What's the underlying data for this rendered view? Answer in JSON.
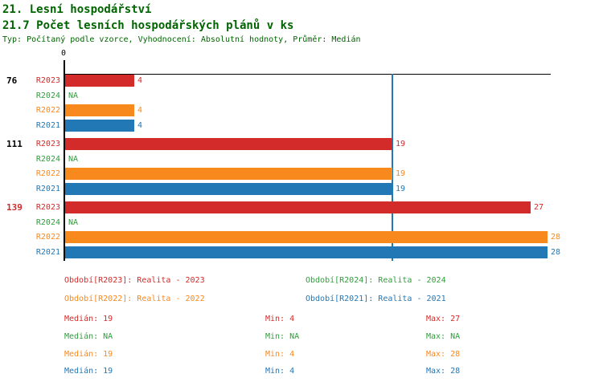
{
  "header": {
    "title": "21. Lesní hospodářství",
    "subtitle": "21.7 Počet lesních hospodářských plánů v ks",
    "meta": "Typ: Počítaný podle vzorce, Vyhodnocení: Absolutní hodnoty, Průměr: Medián"
  },
  "colors": {
    "heading": "#006400",
    "axis": "#000000",
    "red": "#d32b29",
    "green": "#2f9e3c",
    "orange": "#f8891d",
    "blue": "#2278b5"
  },
  "chart_data": {
    "type": "bar",
    "orientation": "horizontal",
    "title": "21.7 Počet lesních hospodářských plánů v ks",
    "x_axis": {
      "min": 0,
      "zero_label": "0",
      "median_line_value": 19,
      "implied_max": 28.2,
      "grid": false
    },
    "groups": [
      {
        "label": "76",
        "label_color_key": "axis",
        "bars": [
          {
            "series": "R2023",
            "value": 4,
            "display": "4",
            "color_key": "red"
          },
          {
            "series": "R2024",
            "value": null,
            "display": "NA",
            "color_key": "green"
          },
          {
            "series": "R2022",
            "value": 4,
            "display": "4",
            "color_key": "orange"
          },
          {
            "series": "R2021",
            "value": 4,
            "display": "4",
            "color_key": "blue"
          }
        ]
      },
      {
        "label": "111",
        "label_color_key": "axis",
        "bars": [
          {
            "series": "R2023",
            "value": 19,
            "display": "19",
            "color_key": "red"
          },
          {
            "series": "R2024",
            "value": null,
            "display": "NA",
            "color_key": "green"
          },
          {
            "series": "R2022",
            "value": 19,
            "display": "19",
            "color_key": "orange"
          },
          {
            "series": "R2021",
            "value": 19,
            "display": "19",
            "color_key": "blue"
          }
        ]
      },
      {
        "label": "139",
        "label_color_key": "red",
        "bars": [
          {
            "series": "R2023",
            "value": 27,
            "display": "27",
            "color_key": "red"
          },
          {
            "series": "R2024",
            "value": null,
            "display": "NA",
            "color_key": "green"
          },
          {
            "series": "R2022",
            "value": 28,
            "display": "28",
            "color_key": "orange"
          },
          {
            "series": "R2021",
            "value": 28,
            "display": "28",
            "color_key": "blue"
          }
        ]
      }
    ],
    "legend": [
      {
        "label": "Období[R2023]: Realita - 2023",
        "color_key": "red",
        "row": 0,
        "col": 0
      },
      {
        "label": "Období[R2024]: Realita - 2024",
        "color_key": "green",
        "row": 0,
        "col": 1
      },
      {
        "label": "Období[R2022]: Realita - 2022",
        "color_key": "orange",
        "row": 1,
        "col": 0
      },
      {
        "label": "Období[R2021]: Realita - 2021",
        "color_key": "blue",
        "row": 1,
        "col": 1
      }
    ],
    "stats_labels": {
      "median": "Medián",
      "min": "Min",
      "max": "Max"
    },
    "stats": [
      {
        "color_key": "red",
        "median": "19",
        "min": "4",
        "max": "27"
      },
      {
        "color_key": "green",
        "median": "NA",
        "min": "NA",
        "max": "NA"
      },
      {
        "color_key": "orange",
        "median": "19",
        "min": "4",
        "max": "28"
      },
      {
        "color_key": "blue",
        "median": "19",
        "min": "4",
        "max": "28"
      }
    ]
  }
}
